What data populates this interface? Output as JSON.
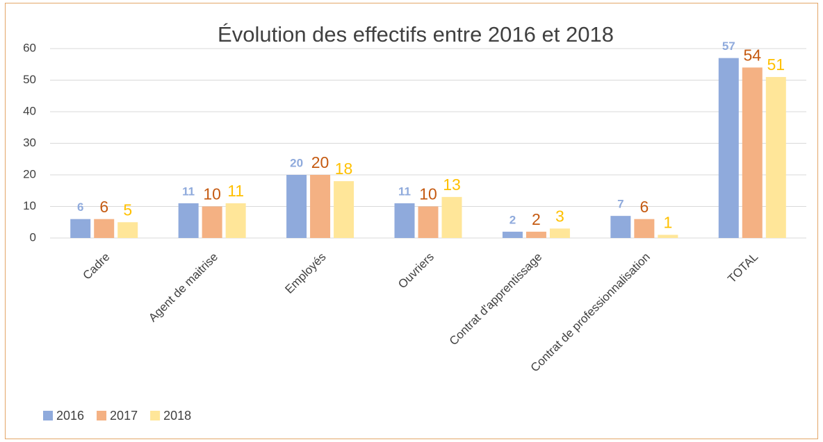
{
  "chart_data": {
    "type": "bar",
    "title": "Évolution des effectifs entre 2016 et 2018",
    "categories": [
      "Cadre",
      "Agent de maitrise",
      "Employés",
      "Ouvriers",
      "Contrat d'apprentissage",
      "Contrat de professionnalisation",
      "TOTAL"
    ],
    "series": [
      {
        "name": "2016",
        "color": "#8faadc",
        "label_color": "#8faadc",
        "values": [
          6,
          11,
          20,
          11,
          2,
          7,
          57
        ]
      },
      {
        "name": "2017",
        "color": "#f4b183",
        "label_color": "#c55a11",
        "values": [
          6,
          10,
          20,
          10,
          2,
          6,
          54
        ]
      },
      {
        "name": "2018",
        "color": "#ffe699",
        "label_color": "#ffc000",
        "values": [
          5,
          11,
          18,
          13,
          3,
          1,
          51
        ]
      }
    ],
    "ylim": [
      0,
      60
    ],
    "yticks": [
      0,
      10,
      20,
      30,
      40,
      50,
      60
    ],
    "grid": true,
    "legend": "bottom-left"
  }
}
